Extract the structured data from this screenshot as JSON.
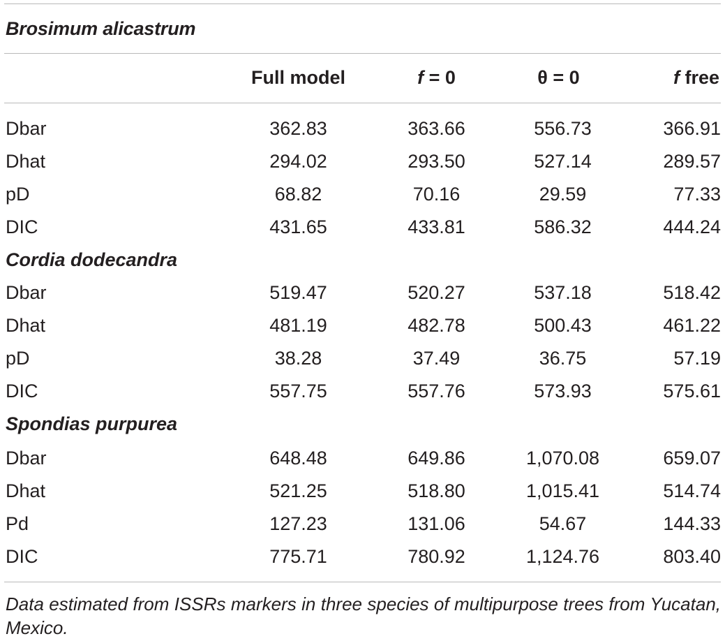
{
  "top_section": "Brosimum alicastrum",
  "columns": {
    "full": "Full model",
    "f0_var": "f",
    "f0_rest": " = 0",
    "theta0": "θ = 0",
    "ffree_var": "f",
    "ffree_rest": " free"
  },
  "groups": [
    {
      "species": "Brosimum alicastrum",
      "rows": [
        {
          "label": "Dbar",
          "values": [
            "362.83",
            "363.66",
            "556.73",
            "366.91"
          ]
        },
        {
          "label": "Dhat",
          "values": [
            "294.02",
            "293.50",
            "527.14",
            "289.57"
          ]
        },
        {
          "label": "pD",
          "values": [
            "68.82",
            "70.16",
            "29.59",
            "77.33"
          ]
        },
        {
          "label": "DIC",
          "values": [
            "431.65",
            "433.81",
            "586.32",
            "444.24"
          ]
        }
      ]
    },
    {
      "species": "Cordia dodecandra",
      "rows": [
        {
          "label": "Dbar",
          "values": [
            "519.47",
            "520.27",
            "537.18",
            "518.42"
          ]
        },
        {
          "label": "Dhat",
          "values": [
            "481.19",
            "482.78",
            "500.43",
            "461.22"
          ]
        },
        {
          "label": "pD",
          "values": [
            "38.28",
            "37.49",
            "36.75",
            "57.19"
          ]
        },
        {
          "label": "DIC",
          "values": [
            "557.75",
            "557.76",
            "573.93",
            "575.61"
          ]
        }
      ]
    },
    {
      "species": "Spondias purpurea",
      "rows": [
        {
          "label": "Dbar",
          "values": [
            "648.48",
            "649.86",
            "1,070.08",
            "659.07"
          ]
        },
        {
          "label": "Dhat",
          "values": [
            "521.25",
            "518.80",
            "1,015.41",
            "514.74"
          ]
        },
        {
          "label": "Pd",
          "values": [
            "127.23",
            "131.06",
            "54.67",
            "144.33"
          ]
        },
        {
          "label": "DIC",
          "values": [
            "775.71",
            "780.92",
            "1,124.76",
            "803.40"
          ]
        }
      ]
    }
  ],
  "footnote": "Data estimated from ISSRs markers in three species of multipurpose trees from Yucatan, Mexico."
}
